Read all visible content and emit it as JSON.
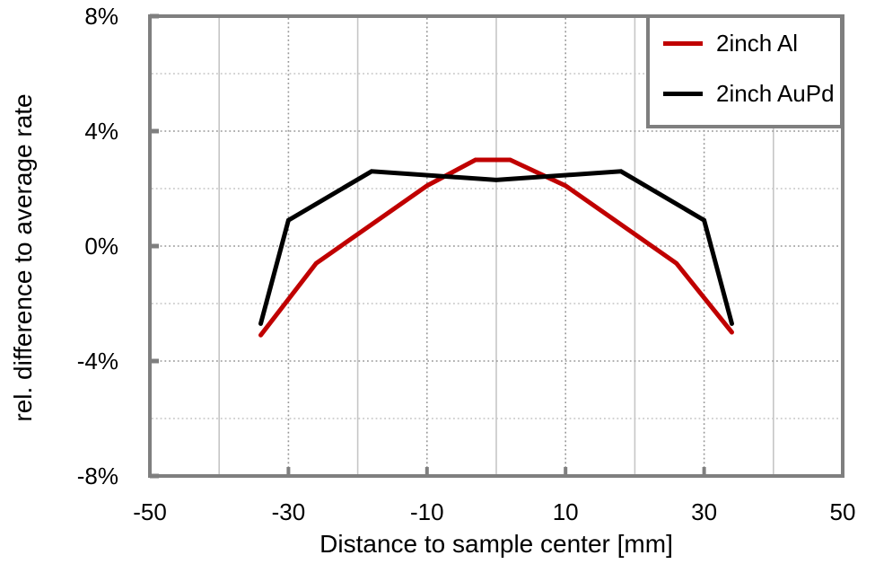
{
  "colors": {
    "background": "#ffffff",
    "axis_frame": "#7f7f7f",
    "grid_major_dotted": "#969696",
    "grid_minor_dotted": "#c3c3c3",
    "grid_minor_solid": "#c6c6c6",
    "series_al": "#c00000",
    "series_aupd": "#000000"
  },
  "legend": {
    "entries": [
      "2inch Al",
      "2inch AuPd"
    ]
  },
  "chart_data": {
    "type": "line",
    "title": "",
    "xlabel": "Distance to sample center [mm]",
    "ylabel": "rel. difference to average rate",
    "xlim": [
      -50,
      50
    ],
    "ylim": [
      -8,
      8
    ],
    "grid": true,
    "legend_position": "top-right",
    "x_major_ticks": [
      -50,
      -30,
      -10,
      10,
      30,
      50
    ],
    "x_tick_labels": [
      "-50",
      "-30",
      "-10",
      "10",
      "30",
      "50"
    ],
    "y_major_ticks": [
      8,
      4,
      0,
      -4,
      -8
    ],
    "y_tick_labels": [
      "8%",
      "4%",
      "0%",
      "-4%",
      "-8%"
    ],
    "x_grid_major": [
      -30,
      -10,
      10,
      30
    ],
    "x_grid_minor": [
      -40,
      -20,
      0,
      20,
      40
    ],
    "y_grid_major": [
      4,
      0,
      -4
    ],
    "y_grid_minor": [
      6,
      2,
      -2,
      -6
    ],
    "series": [
      {
        "name": "2inch Al",
        "color": "#c00000",
        "points": [
          [
            -34,
            -3.1
          ],
          [
            -26,
            -0.6
          ],
          [
            -10,
            2.1
          ],
          [
            -3,
            3.0
          ],
          [
            2,
            3.0
          ],
          [
            10,
            2.1
          ],
          [
            26,
            -0.6
          ],
          [
            34,
            -3.0
          ]
        ]
      },
      {
        "name": "2inch AuPd",
        "color": "#000000",
        "points": [
          [
            -34,
            -2.7
          ],
          [
            -30,
            0.9
          ],
          [
            -18,
            2.6
          ],
          [
            0,
            2.3
          ],
          [
            18,
            2.6
          ],
          [
            30,
            0.9
          ],
          [
            34,
            -2.7
          ]
        ]
      }
    ]
  }
}
